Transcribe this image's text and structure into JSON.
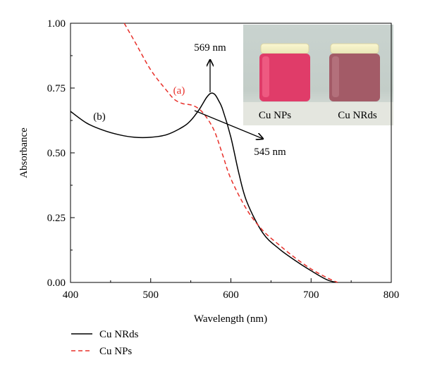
{
  "chart_data": {
    "type": "line",
    "title": "",
    "xlabel": "Wavelength (nm)",
    "ylabel": "Absorbance",
    "xlim": [
      400,
      800
    ],
    "ylim": [
      0,
      1
    ],
    "x_ticks": [
      400,
      500,
      600,
      700,
      800
    ],
    "y_ticks": [
      0,
      0.25,
      0.5,
      0.75,
      1
    ],
    "x_tick_labels": [
      "400",
      "500",
      "600",
      "700",
      "800"
    ],
    "y_tick_labels": [
      "0.00",
      "0.25",
      "0.50",
      "0.75",
      "1.00"
    ],
    "grid": false,
    "legend_position": "bottom-left",
    "series": [
      {
        "name": "Cu NRds",
        "color": "#000000",
        "style": "solid",
        "tag": "(b)",
        "x": [
          400,
          420,
          440,
          460,
          480,
          500,
          520,
          540,
          550,
          560,
          565,
          570,
          575,
          580,
          585,
          590,
          600,
          610,
          620,
          640,
          660,
          680,
          700,
          720,
          733
        ],
        "y": [
          0.66,
          0.615,
          0.588,
          0.57,
          0.56,
          0.56,
          0.57,
          0.6,
          0.625,
          0.665,
          0.69,
          0.715,
          0.73,
          0.725,
          0.7,
          0.665,
          0.56,
          0.42,
          0.31,
          0.19,
          0.13,
          0.085,
          0.045,
          0.01,
          0.0
        ]
      },
      {
        "name": "Cu NPs",
        "color": "#e8302a",
        "style": "dashed",
        "tag": "(a)",
        "x": [
          467,
          480,
          500,
          520,
          530,
          540,
          550,
          560,
          570,
          580,
          590,
          600,
          620,
          640,
          660,
          680,
          700,
          720,
          733
        ],
        "y": [
          1.0,
          0.93,
          0.82,
          0.74,
          0.705,
          0.69,
          0.685,
          0.67,
          0.635,
          0.58,
          0.49,
          0.4,
          0.28,
          0.2,
          0.145,
          0.095,
          0.052,
          0.018,
          0.0
        ]
      }
    ],
    "annotations": [
      {
        "text": "569 nm",
        "arrow": "up",
        "at_x": 575,
        "at_y": 0.73
      },
      {
        "text": "545 nm",
        "arrow": "right",
        "at_x": 567,
        "at_y": 0.67
      }
    ],
    "inset": {
      "type": "photo",
      "labels": [
        "Cu NPs",
        "Cu NRds"
      ],
      "sample_colors": [
        "#e03c69",
        "#a35b67"
      ]
    }
  }
}
